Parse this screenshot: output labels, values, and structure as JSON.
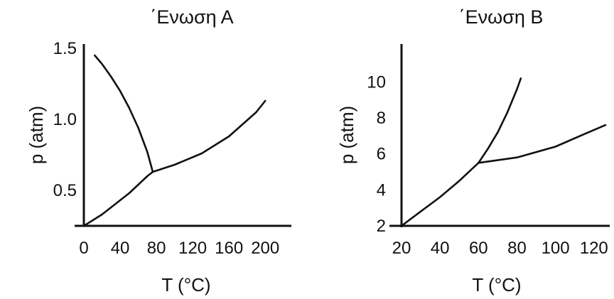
{
  "chart_data": [
    {
      "type": "line",
      "title": "΄Ενωση Α",
      "xlabel": "T (°C)",
      "ylabel": "p (atm)",
      "xlim": [
        0,
        210
      ],
      "ylim": [
        0.25,
        1.5
      ],
      "x_ticks": [
        "0",
        "40",
        "80",
        "120",
        "160",
        "200"
      ],
      "y_ticks": [
        "0.5",
        "1.0",
        "1.5"
      ],
      "series": [
        {
          "x": [
            0,
            10,
            20,
            30,
            40,
            50,
            60,
            70,
            76
          ],
          "y": [
            0.25,
            0.29,
            0.33,
            0.38,
            0.43,
            0.48,
            0.54,
            0.6,
            0.63
          ]
        },
        {
          "x": [
            12,
            20,
            30,
            40,
            50,
            60,
            70,
            76
          ],
          "y": [
            1.45,
            1.39,
            1.3,
            1.2,
            1.08,
            0.94,
            0.77,
            0.63
          ]
        },
        {
          "x": [
            76,
            100,
            130,
            160,
            190,
            200
          ],
          "y": [
            0.63,
            0.68,
            0.76,
            0.88,
            1.05,
            1.13
          ]
        }
      ]
    },
    {
      "type": "line",
      "title": "΄Ενωση Β",
      "xlabel": "T (°C)",
      "ylabel": "p (atm)",
      "xlim": [
        20,
        126
      ],
      "ylim": [
        2,
        11
      ],
      "x_ticks": [
        "20",
        "40",
        "60",
        "80",
        "100",
        "120"
      ],
      "y_ticks": [
        "2",
        "4",
        "6",
        "8",
        "10"
      ],
      "series": [
        {
          "x": [
            20,
            30,
            40,
            50,
            60
          ],
          "y": [
            2.0,
            2.8,
            3.6,
            4.5,
            5.5
          ]
        },
        {
          "x": [
            60,
            65,
            70,
            75,
            80,
            82
          ],
          "y": [
            5.5,
            6.3,
            7.2,
            8.3,
            9.6,
            10.2
          ]
        },
        {
          "x": [
            60,
            80,
            100,
            115,
            126
          ],
          "y": [
            5.5,
            5.8,
            6.4,
            7.1,
            7.6
          ]
        }
      ]
    }
  ]
}
